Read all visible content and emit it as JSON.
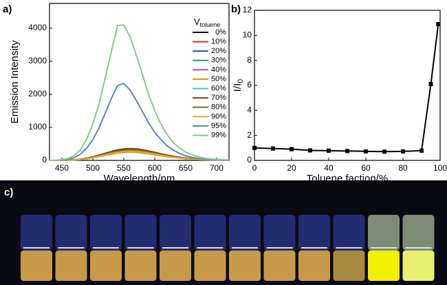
{
  "chart_data": [
    {
      "type": "line",
      "panel_label": "a)",
      "x_label": "Wavelength/nm",
      "y_label": "Emission Intensity",
      "legend_title": "V",
      "legend_title_sub": "toluene",
      "xlim": [
        430,
        720
      ],
      "xticks": [
        450,
        500,
        550,
        600,
        650,
        700
      ],
      "ylim": [
        0,
        4750
      ],
      "yticks": [
        0,
        1000,
        2000,
        3000,
        4000
      ],
      "x": [
        430,
        440,
        450,
        460,
        470,
        480,
        490,
        500,
        510,
        520,
        530,
        540,
        550,
        560,
        570,
        580,
        590,
        600,
        610,
        620,
        630,
        640,
        650,
        660,
        670,
        680,
        690,
        700,
        710,
        720
      ],
      "series": [
        {
          "name": "0%",
          "color": "#000000",
          "values": [
            0,
            0,
            4,
            7,
            18,
            35,
            63,
            105,
            158,
            210,
            263,
            308,
            340,
            350,
            340,
            315,
            280,
            238,
            196,
            158,
            123,
            95,
            70,
            53,
            39,
            28,
            21,
            14,
            11,
            7
          ]
        },
        {
          "name": "10%",
          "color": "#e8282a",
          "values": [
            0,
            0,
            3,
            7,
            17,
            34,
            61,
            102,
            153,
            204,
            255,
            299,
            330,
            340,
            330,
            306,
            272,
            231,
            190,
            153,
            119,
            92,
            68,
            51,
            37,
            27,
            20,
            14,
            10,
            7
          ]
        },
        {
          "name": "20%",
          "color": "#1f4fd0",
          "values": [
            0,
            0,
            3,
            7,
            17,
            33,
            59,
            99,
            149,
            198,
            248,
            290,
            320,
            330,
            320,
            297,
            264,
            224,
            185,
            149,
            116,
            89,
            66,
            50,
            36,
            26,
            20,
            13,
            10,
            7
          ]
        },
        {
          "name": "30%",
          "color": "#2a9a6a",
          "values": [
            0,
            0,
            3,
            6,
            15,
            30,
            54,
            90,
            135,
            180,
            225,
            264,
            291,
            300,
            291,
            270,
            240,
            204,
            168,
            135,
            105,
            81,
            60,
            45,
            33,
            24,
            18,
            12,
            9,
            6
          ]
        },
        {
          "name": "40%",
          "color": "#b040c0",
          "values": [
            0,
            0,
            3,
            6,
            16,
            31,
            56,
            93,
            140,
            186,
            233,
            273,
            301,
            310,
            301,
            279,
            248,
            211,
            174,
            140,
            109,
            84,
            62,
            47,
            34,
            25,
            19,
            12,
            9,
            6
          ]
        },
        {
          "name": "50%",
          "color": "#d4a000",
          "values": [
            0,
            0,
            3,
            5,
            13,
            25,
            45,
            75,
            113,
            150,
            188,
            220,
            243,
            250,
            243,
            225,
            200,
            170,
            140,
            113,
            88,
            68,
            50,
            38,
            28,
            20,
            15,
            10,
            8,
            5
          ]
        },
        {
          "name": "60%",
          "color": "#40c8d8",
          "values": [
            0,
            0,
            3,
            6,
            15,
            29,
            52,
            87,
            131,
            174,
            218,
            255,
            281,
            290,
            281,
            261,
            232,
            197,
            162,
            131,
            102,
            78,
            58,
            44,
            32,
            23,
            17,
            12,
            9,
            6
          ]
        },
        {
          "name": "70%",
          "color": "#7a3a2a",
          "values": [
            0,
            0,
            4,
            7,
            18,
            36,
            65,
            108,
            162,
            216,
            270,
            317,
            349,
            360,
            349,
            324,
            288,
            245,
            202,
            162,
            126,
            97,
            72,
            54,
            40,
            29,
            22,
            14,
            11,
            7
          ]
        },
        {
          "name": "80%",
          "color": "#6a7a10",
          "values": [
            0,
            0,
            3,
            6,
            16,
            32,
            58,
            96,
            144,
            192,
            240,
            282,
            310,
            320,
            310,
            288,
            256,
            218,
            179,
            144,
            112,
            86,
            64,
            48,
            35,
            26,
            19,
            13,
            10,
            6
          ]
        },
        {
          "name": "90%",
          "color": "#f0a040",
          "values": [
            0,
            0,
            3,
            6,
            14,
            28,
            50,
            84,
            126,
            168,
            210,
            246,
            272,
            280,
            272,
            252,
            224,
            190,
            157,
            126,
            98,
            76,
            56,
            42,
            31,
            22,
            17,
            11,
            8,
            6
          ]
        },
        {
          "name": "95%",
          "color": "#5088d0",
          "values": [
            0,
            3,
            12,
            35,
            85,
            190,
            370,
            630,
            980,
            1430,
            1880,
            2270,
            2330,
            2130,
            1820,
            1480,
            1140,
            850,
            630,
            440,
            310,
            210,
            140,
            95,
            62,
            40,
            26,
            17,
            11,
            7
          ]
        },
        {
          "name": "99%",
          "color": "#80d080",
          "values": [
            0,
            5,
            20,
            60,
            150,
            330,
            640,
            1100,
            1700,
            2500,
            3300,
            4080,
            4100,
            3750,
            3200,
            2600,
            2000,
            1500,
            1100,
            780,
            540,
            370,
            250,
            170,
            110,
            70,
            45,
            30,
            20,
            12
          ]
        }
      ]
    },
    {
      "type": "line",
      "panel_label": "b)",
      "x_label": "Toluene faction/%",
      "y_label": "I/I",
      "y_label_sub": "0",
      "xlim": [
        0,
        100
      ],
      "xticks": [
        0,
        20,
        40,
        60,
        80,
        100
      ],
      "ylim": [
        0,
        12
      ],
      "yticks": [
        0,
        2,
        4,
        6,
        8,
        10,
        12
      ],
      "x": [
        0,
        10,
        20,
        30,
        40,
        50,
        60,
        70,
        80,
        90,
        95,
        99
      ],
      "values": [
        1.0,
        0.95,
        0.9,
        0.8,
        0.78,
        0.75,
        0.72,
        0.7,
        0.72,
        0.78,
        6.1,
        10.9
      ],
      "color": "#000000",
      "marker": "square"
    }
  ],
  "photo": {
    "label": "c)"
  }
}
